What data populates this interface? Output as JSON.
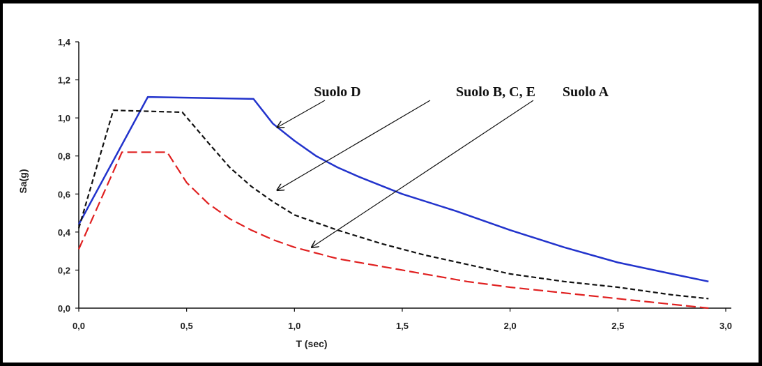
{
  "chart_data": {
    "type": "line",
    "xlabel": "T (sec)",
    "ylabel": "Sa(g)",
    "xlim": [
      0,
      3.0
    ],
    "ylim": [
      0,
      1.4
    ],
    "x_ticks": [
      "0,0",
      "0,5",
      "1,0",
      "1,5",
      "2,0",
      "2,5",
      "3,0"
    ],
    "y_ticks": [
      "0,0",
      "0,2",
      "0,4",
      "0,6",
      "0,8",
      "1,0",
      "1,2",
      "1,4"
    ],
    "grid": false,
    "series": [
      {
        "color": "#2233cc",
        "style": "solid",
        "x": [
          0.0,
          0.32,
          0.81,
          0.9,
          1.0,
          1.1,
          1.2,
          1.3,
          1.5,
          1.75,
          2.0,
          2.25,
          2.5,
          2.75,
          2.92
        ],
        "y": [
          0.44,
          1.11,
          1.1,
          0.97,
          0.88,
          0.8,
          0.74,
          0.69,
          0.6,
          0.51,
          0.41,
          0.32,
          0.24,
          0.18,
          0.14
        ]
      },
      {
        "color": "#111111",
        "style": "dashed",
        "x": [
          0.0,
          0.16,
          0.48,
          0.6,
          0.7,
          0.8,
          0.9,
          1.0,
          1.2,
          1.4,
          1.6,
          1.8,
          2.0,
          2.25,
          2.5,
          2.75,
          2.92
        ],
        "y": [
          0.42,
          1.04,
          1.03,
          0.87,
          0.74,
          0.64,
          0.56,
          0.49,
          0.41,
          0.34,
          0.28,
          0.23,
          0.18,
          0.14,
          0.11,
          0.07,
          0.05
        ]
      },
      {
        "color": "#e02020",
        "style": "dashed",
        "x": [
          0.0,
          0.2,
          0.41,
          0.5,
          0.6,
          0.7,
          0.8,
          0.9,
          1.0,
          1.2,
          1.4,
          1.6,
          1.8,
          2.0,
          2.25,
          2.5,
          2.75,
          2.92
        ],
        "y": [
          0.31,
          0.82,
          0.82,
          0.66,
          0.55,
          0.47,
          0.41,
          0.36,
          0.32,
          0.26,
          0.22,
          0.18,
          0.14,
          0.11,
          0.08,
          0.05,
          0.02,
          0.0
        ]
      }
    ],
    "annotations": [
      {
        "text": "Suolo D",
        "points_to": [
          0.92,
          0.95
        ]
      },
      {
        "text": "Suolo B, C, E",
        "points_to": [
          0.92,
          0.62
        ]
      },
      {
        "text": "Suolo A",
        "points_to": [
          1.08,
          0.32
        ]
      }
    ]
  }
}
